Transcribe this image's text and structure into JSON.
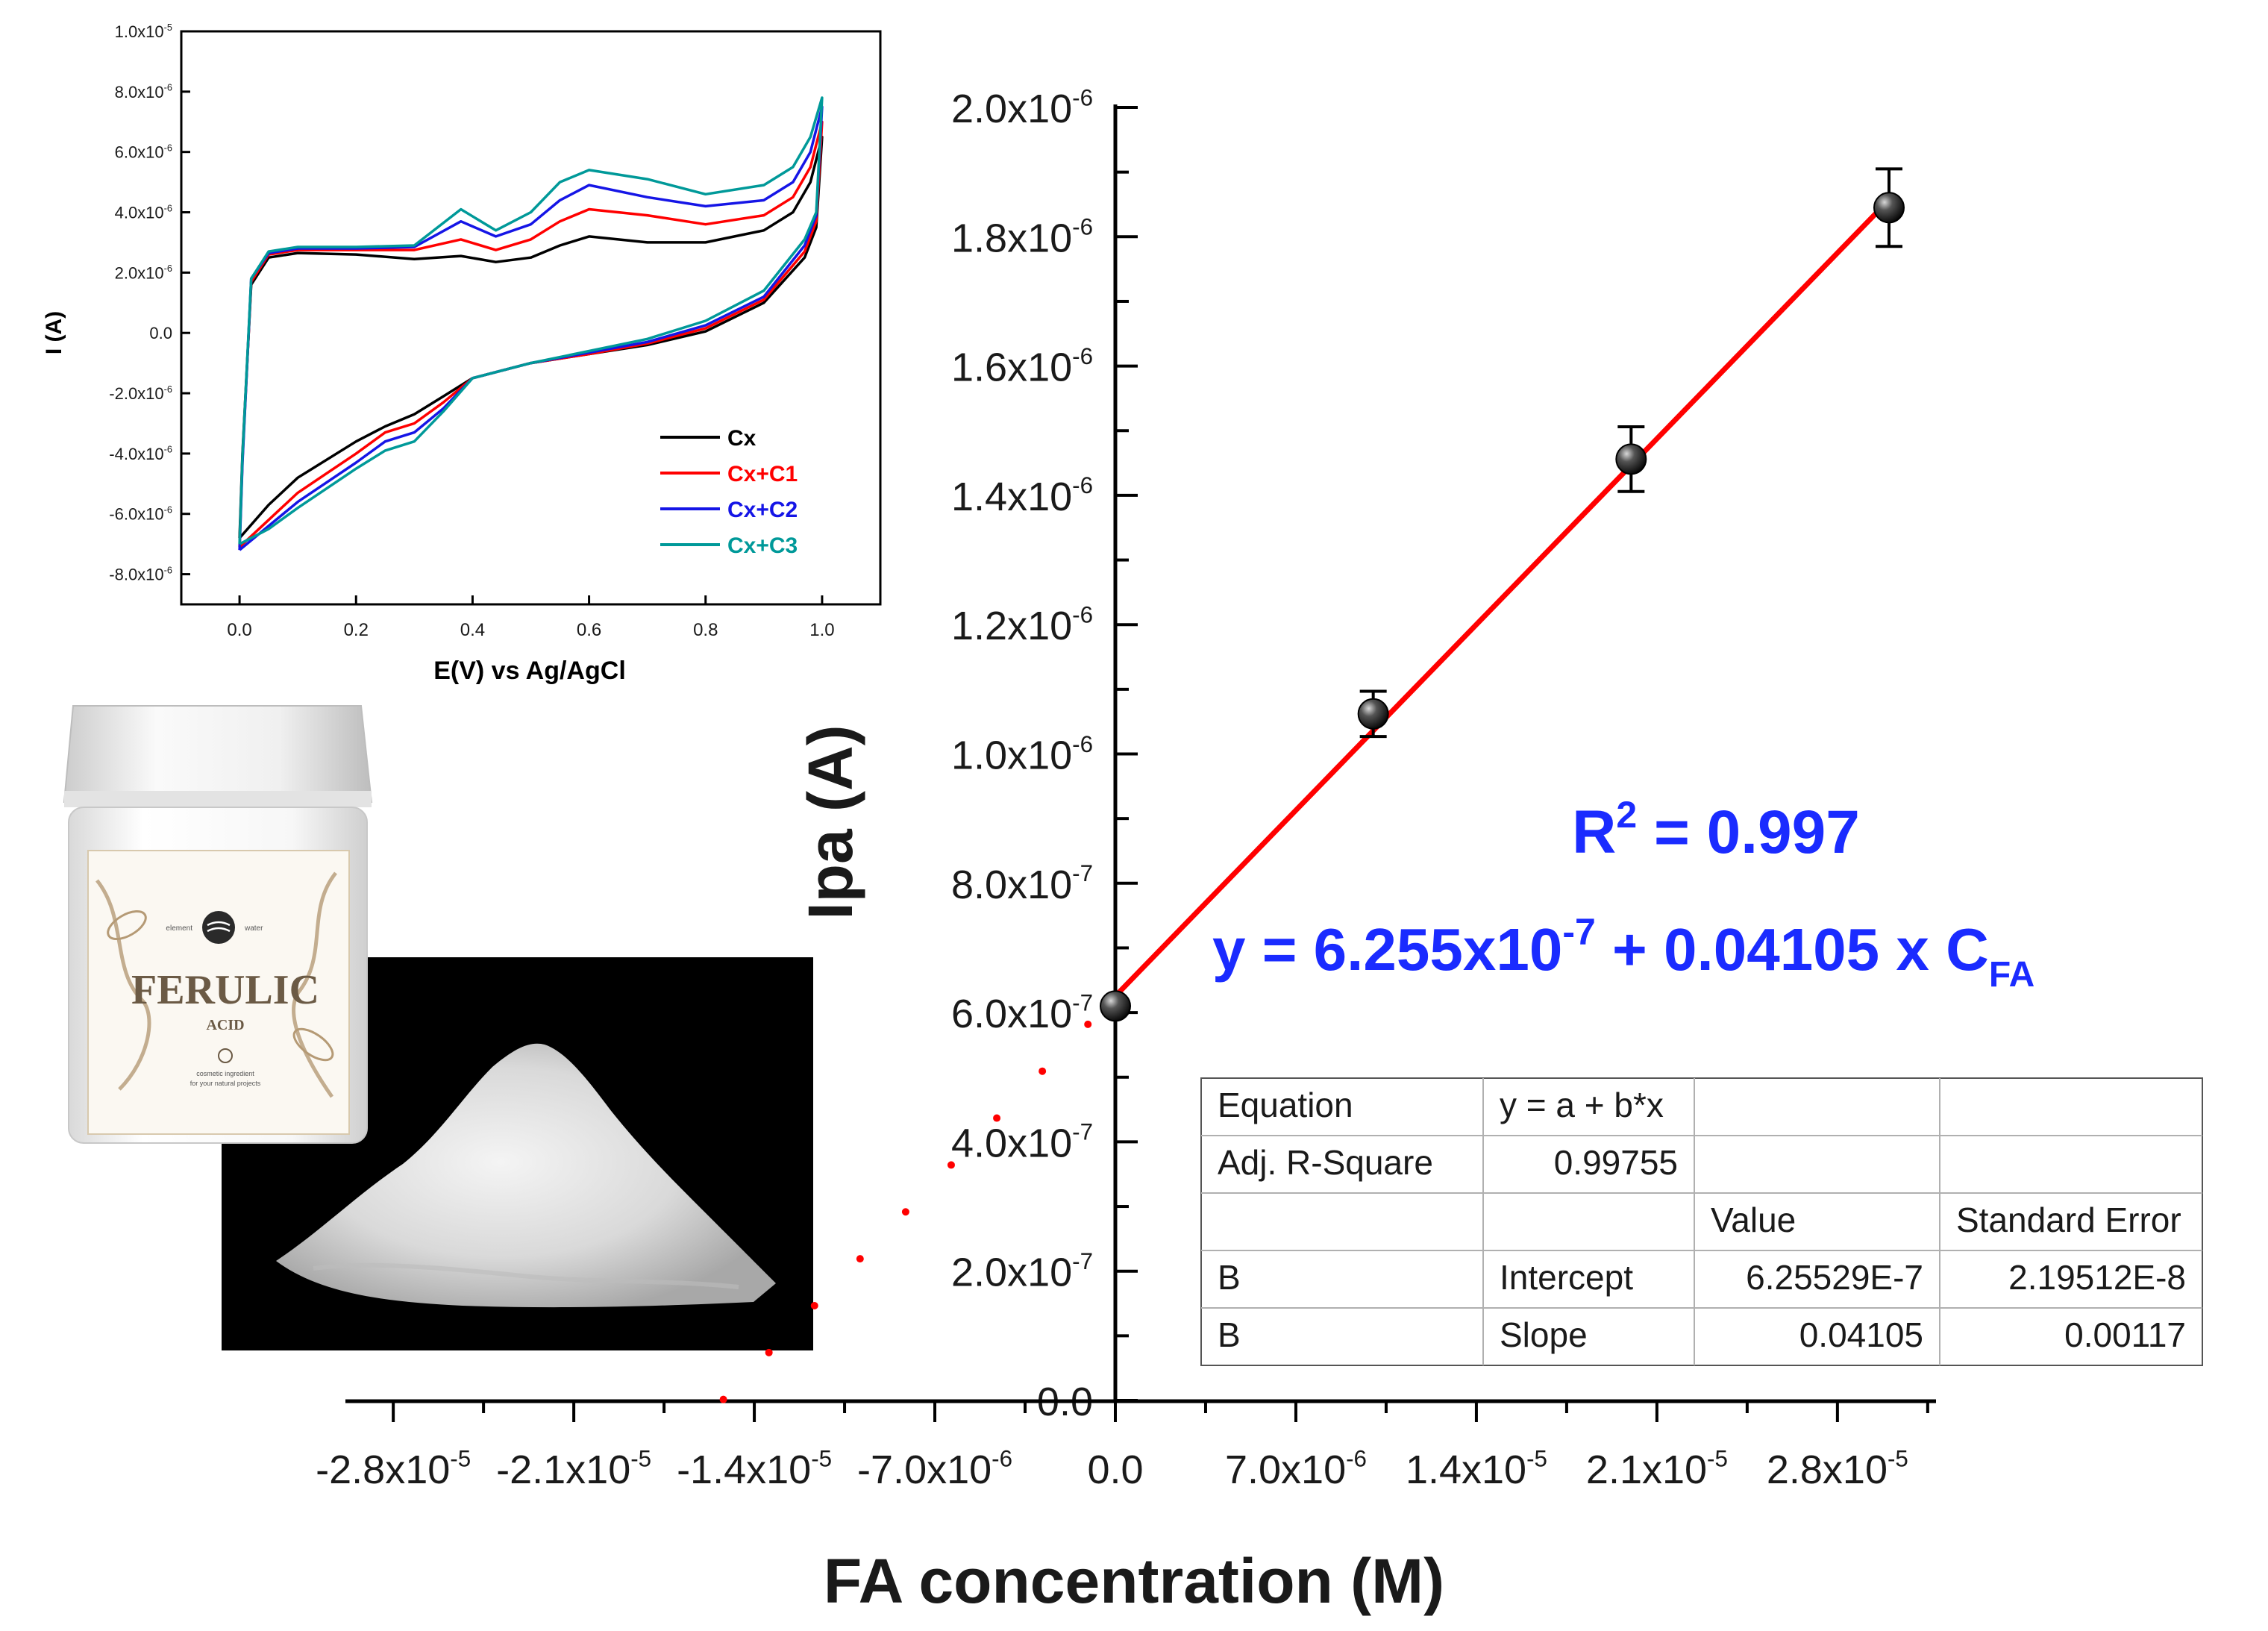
{
  "chart_data": [
    {
      "id": "calibration",
      "type": "scatter",
      "xlabel": "FA concentration (M)",
      "ylabel": "Ipa (A)",
      "xlim": [
        -3.1e-05,
        3.25e-05
      ],
      "ylim": [
        0,
        2e-06
      ],
      "x_ticks": [
        -2.8e-05,
        -2.1e-05,
        -1.4e-05,
        -7e-06,
        0,
        7e-06,
        1.4e-05,
        2.1e-05,
        2.8e-05
      ],
      "x_tick_labels": [
        {
          "base": "-2.8x10",
          "exp": "-5"
        },
        {
          "base": "-2.1x10",
          "exp": "-5"
        },
        {
          "base": "-1.4x10",
          "exp": "-5"
        },
        {
          "base": "-7.0x10",
          "exp": "-6"
        },
        {
          "base": "0.0",
          "exp": ""
        },
        {
          "base": "7.0x10",
          "exp": "-6"
        },
        {
          "base": "1.4x10",
          "exp": "-5"
        },
        {
          "base": "2.1x10",
          "exp": "-5"
        },
        {
          "base": "2.8x10",
          "exp": "-5"
        }
      ],
      "y_ticks": [
        0,
        2e-07,
        4e-07,
        6e-07,
        8e-07,
        1e-06,
        1.2e-06,
        1.4e-06,
        1.6e-06,
        1.8e-06,
        2e-06
      ],
      "y_tick_labels": [
        {
          "base": "0.0",
          "exp": ""
        },
        {
          "base": "2.0x10",
          "exp": "-7"
        },
        {
          "base": "4.0x10",
          "exp": "-7"
        },
        {
          "base": "6.0x10",
          "exp": "-7"
        },
        {
          "base": "8.0x10",
          "exp": "-7"
        },
        {
          "base": "1.0x10",
          "exp": "-6"
        },
        {
          "base": "1.2x10",
          "exp": "-6"
        },
        {
          "base": "1.4x10",
          "exp": "-6"
        },
        {
          "base": "1.6x10",
          "exp": "-6"
        },
        {
          "base": "1.8x10",
          "exp": "-6"
        },
        {
          "base": "2.0x10",
          "exp": "-6"
        }
      ],
      "points": [
        {
          "x": 0,
          "y": 6.1e-07,
          "err": 0
        },
        {
          "x": 1e-05,
          "y": 1.062e-06,
          "err": 3.5e-08
        },
        {
          "x": 2e-05,
          "y": 1.456e-06,
          "err": 5e-08
        },
        {
          "x": 3e-05,
          "y": 1.845e-06,
          "err": 6e-08
        }
      ],
      "fit": {
        "intercept": 6.255e-07,
        "slope": 0.04105,
        "x_from": 0,
        "x_to": 3e-05,
        "color": "#ff0000"
      },
      "extrapolation": {
        "x_from": -1.52e-05,
        "x_to": 0,
        "color": "#ff0000",
        "style": "dotted"
      },
      "annotations": {
        "r2_prefix": "R",
        "r2_sup": "2",
        "r2_suffix": " = 0.997",
        "eq_prefix": "y = 6.255x10",
        "eq_sup": "-7",
        "eq_mid": " + 0.04105 x C",
        "eq_sub": "FA",
        "color": "#1a2bff"
      },
      "fit_table": {
        "rows": [
          [
            "Equation",
            "y = a + b*x",
            "",
            ""
          ],
          [
            "Adj. R-Square",
            "0.99755",
            "",
            ""
          ],
          [
            "",
            "",
            "Value",
            "Standard Error"
          ],
          [
            "B",
            "Intercept",
            "6.25529E-7",
            "2.19512E-8"
          ],
          [
            "B",
            "Slope",
            "0.04105",
            "0.00117"
          ]
        ]
      }
    },
    {
      "id": "cv-inset",
      "type": "line",
      "xlabel": "E(V) vs Ag/AgCl",
      "ylabel": "I (A)",
      "xlim": [
        -0.1,
        1.1
      ],
      "ylim": [
        -9e-06,
        1e-05
      ],
      "x_ticks": [
        0.0,
        0.2,
        0.4,
        0.6,
        0.8,
        1.0
      ],
      "x_tick_labels": [
        "0.0",
        "0.2",
        "0.4",
        "0.6",
        "0.8",
        "1.0"
      ],
      "y_ticks": [
        -8e-06,
        -6e-06,
        -4e-06,
        -2e-06,
        0,
        2e-06,
        4e-06,
        6e-06,
        8e-06,
        1e-05
      ],
      "y_tick_labels": [
        {
          "base": "-8.0x10",
          "exp": "-6"
        },
        {
          "base": "-6.0x10",
          "exp": "-6"
        },
        {
          "base": "-4.0x10",
          "exp": "-6"
        },
        {
          "base": "-2.0x10",
          "exp": "-6"
        },
        {
          "base": "0.0",
          "exp": ""
        },
        {
          "base": "2.0x10",
          "exp": "-6"
        },
        {
          "base": "4.0x10",
          "exp": "-6"
        },
        {
          "base": "6.0x10",
          "exp": "-6"
        },
        {
          "base": "8.0x10",
          "exp": "-6"
        },
        {
          "base": "1.0x10",
          "exp": "-5"
        }
      ],
      "series": [
        {
          "name": "Cx",
          "color": "#000000",
          "forward": [
            [
              0,
              -6.8e-06
            ],
            [
              0.005,
              -4e-06
            ],
            [
              0.02,
              1.6e-06
            ],
            [
              0.05,
              2.5e-06
            ],
            [
              0.1,
              2.65e-06
            ],
            [
              0.2,
              2.6e-06
            ],
            [
              0.3,
              2.45e-06
            ],
            [
              0.38,
              2.55e-06
            ],
            [
              0.44,
              2.35e-06
            ],
            [
              0.5,
              2.5e-06
            ],
            [
              0.55,
              2.9e-06
            ],
            [
              0.6,
              3.2e-06
            ],
            [
              0.7,
              3e-06
            ],
            [
              0.8,
              3e-06
            ],
            [
              0.9,
              3.4e-06
            ],
            [
              0.95,
              4e-06
            ],
            [
              0.98,
              5e-06
            ],
            [
              1.0,
              6.5e-06
            ]
          ],
          "reverse": [
            [
              1.0,
              6.5e-06
            ],
            [
              0.99,
              3.5e-06
            ],
            [
              0.97,
              2.5e-06
            ],
            [
              0.9,
              1e-06
            ],
            [
              0.8,
              5e-08
            ],
            [
              0.7,
              -4e-07
            ],
            [
              0.6,
              -7e-07
            ],
            [
              0.5,
              -1e-06
            ],
            [
              0.4,
              -1.5e-06
            ],
            [
              0.35,
              -2.1e-06
            ],
            [
              0.3,
              -2.7e-06
            ],
            [
              0.25,
              -3.1e-06
            ],
            [
              0.2,
              -3.6e-06
            ],
            [
              0.1,
              -4.8e-06
            ],
            [
              0.05,
              -5.7e-06
            ],
            [
              0,
              -6.8e-06
            ]
          ]
        },
        {
          "name": "Cx+C1",
          "color": "#ff0000",
          "forward": [
            [
              0,
              -7.1e-06
            ],
            [
              0.005,
              -4.2e-06
            ],
            [
              0.02,
              1.7e-06
            ],
            [
              0.05,
              2.6e-06
            ],
            [
              0.1,
              2.75e-06
            ],
            [
              0.2,
              2.75e-06
            ],
            [
              0.3,
              2.75e-06
            ],
            [
              0.38,
              3.1e-06
            ],
            [
              0.44,
              2.75e-06
            ],
            [
              0.5,
              3.1e-06
            ],
            [
              0.55,
              3.7e-06
            ],
            [
              0.6,
              4.1e-06
            ],
            [
              0.7,
              3.9e-06
            ],
            [
              0.8,
              3.6e-06
            ],
            [
              0.9,
              3.9e-06
            ],
            [
              0.95,
              4.5e-06
            ],
            [
              0.98,
              5.5e-06
            ],
            [
              1.0,
              7e-06
            ]
          ],
          "reverse": [
            [
              1.0,
              7e-06
            ],
            [
              0.99,
              3.7e-06
            ],
            [
              0.97,
              2.7e-06
            ],
            [
              0.9,
              1.1e-06
            ],
            [
              0.8,
              1.5e-07
            ],
            [
              0.7,
              -3.5e-07
            ],
            [
              0.6,
              -7e-07
            ],
            [
              0.5,
              -1e-06
            ],
            [
              0.4,
              -1.5e-06
            ],
            [
              0.35,
              -2.3e-06
            ],
            [
              0.3,
              -3e-06
            ],
            [
              0.25,
              -3.3e-06
            ],
            [
              0.2,
              -4e-06
            ],
            [
              0.1,
              -5.3e-06
            ],
            [
              0.05,
              -6.2e-06
            ],
            [
              0,
              -7.1e-06
            ]
          ]
        },
        {
          "name": "Cx+C2",
          "color": "#1515e6",
          "forward": [
            [
              0,
              -7.2e-06
            ],
            [
              0.005,
              -4.3e-06
            ],
            [
              0.02,
              1.8e-06
            ],
            [
              0.05,
              2.65e-06
            ],
            [
              0.1,
              2.8e-06
            ],
            [
              0.2,
              2.8e-06
            ],
            [
              0.3,
              2.85e-06
            ],
            [
              0.38,
              3.7e-06
            ],
            [
              0.44,
              3.2e-06
            ],
            [
              0.5,
              3.6e-06
            ],
            [
              0.55,
              4.4e-06
            ],
            [
              0.6,
              4.9e-06
            ],
            [
              0.7,
              4.5e-06
            ],
            [
              0.8,
              4.2e-06
            ],
            [
              0.9,
              4.4e-06
            ],
            [
              0.95,
              5e-06
            ],
            [
              0.98,
              6e-06
            ],
            [
              1.0,
              7.5e-06
            ]
          ],
          "reverse": [
            [
              1.0,
              7.5e-06
            ],
            [
              0.99,
              3.9e-06
            ],
            [
              0.97,
              2.9e-06
            ],
            [
              0.9,
              1.2e-06
            ],
            [
              0.8,
              2.5e-07
            ],
            [
              0.7,
              -3e-07
            ],
            [
              0.6,
              -6.5e-07
            ],
            [
              0.5,
              -1e-06
            ],
            [
              0.4,
              -1.5e-06
            ],
            [
              0.35,
              -2.5e-06
            ],
            [
              0.3,
              -3.3e-06
            ],
            [
              0.25,
              -3.6e-06
            ],
            [
              0.2,
              -4.3e-06
            ],
            [
              0.1,
              -5.6e-06
            ],
            [
              0.05,
              -6.4e-06
            ],
            [
              0,
              -7.2e-06
            ]
          ]
        },
        {
          "name": "Cx+C3",
          "color": "#009999",
          "forward": [
            [
              0,
              -7e-06
            ],
            [
              0.005,
              -4.1e-06
            ],
            [
              0.02,
              1.8e-06
            ],
            [
              0.05,
              2.7e-06
            ],
            [
              0.1,
              2.85e-06
            ],
            [
              0.2,
              2.85e-06
            ],
            [
              0.3,
              2.9e-06
            ],
            [
              0.38,
              4.1e-06
            ],
            [
              0.44,
              3.4e-06
            ],
            [
              0.5,
              4e-06
            ],
            [
              0.55,
              5e-06
            ],
            [
              0.6,
              5.4e-06
            ],
            [
              0.7,
              5.1e-06
            ],
            [
              0.8,
              4.6e-06
            ],
            [
              0.9,
              4.9e-06
            ],
            [
              0.95,
              5.5e-06
            ],
            [
              0.98,
              6.5e-06
            ],
            [
              1.0,
              7.8e-06
            ]
          ],
          "reverse": [
            [
              1.0,
              7.8e-06
            ],
            [
              0.99,
              4e-06
            ],
            [
              0.97,
              3.1e-06
            ],
            [
              0.9,
              1.4e-06
            ],
            [
              0.8,
              4e-07
            ],
            [
              0.7,
              -2e-07
            ],
            [
              0.6,
              -6e-07
            ],
            [
              0.5,
              -1e-06
            ],
            [
              0.4,
              -1.5e-06
            ],
            [
              0.35,
              -2.6e-06
            ],
            [
              0.3,
              -3.6e-06
            ],
            [
              0.25,
              -3.9e-06
            ],
            [
              0.2,
              -4.5e-06
            ],
            [
              0.1,
              -5.8e-06
            ],
            [
              0.05,
              -6.5e-06
            ],
            [
              0,
              -7e-06
            ]
          ]
        }
      ],
      "legend_position": "lower-right"
    }
  ],
  "product": {
    "brand_left": "element",
    "brand_right": "water",
    "name": "FERULIC",
    "subname": "ACID",
    "tagline_1": "cosmetic ingredient",
    "tagline_2": "for your natural projects"
  }
}
